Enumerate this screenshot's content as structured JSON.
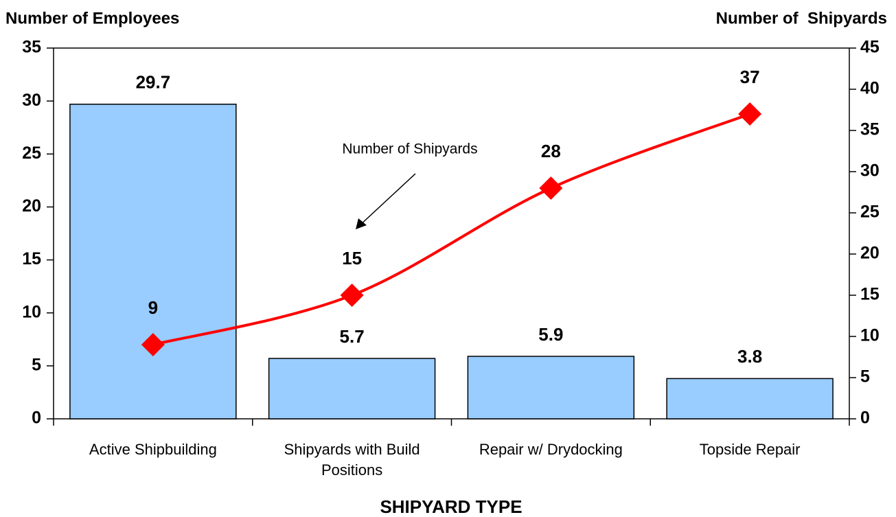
{
  "chart_data": {
    "type": "bar",
    "categories": [
      "Active Shipbuilding",
      "Shipyards with Build Positions",
      "Repair w/ Drydocking",
      "Topside Repair"
    ],
    "series": [
      {
        "name": "Number of Employees",
        "color": "#99ccff",
        "values": [
          29.7,
          5.7,
          5.9,
          3.8
        ]
      },
      {
        "name": "Number of Shipyards",
        "color": "#ff0000",
        "values": [
          9,
          15,
          28,
          37
        ],
        "axis": "y2",
        "type": "line"
      }
    ],
    "y2_label": "Number of  Shipyards",
    "x_label": "SHIPYARD TYPE",
    "ylim": [
      0,
      35
    ],
    "yticks": [
      0,
      5,
      10,
      15,
      20,
      25,
      30,
      35
    ],
    "y2lim": [
      0,
      45
    ],
    "y2ticks": [
      0,
      5,
      10,
      15,
      20,
      25,
      30,
      35,
      40,
      45
    ],
    "grid": false
  }
}
